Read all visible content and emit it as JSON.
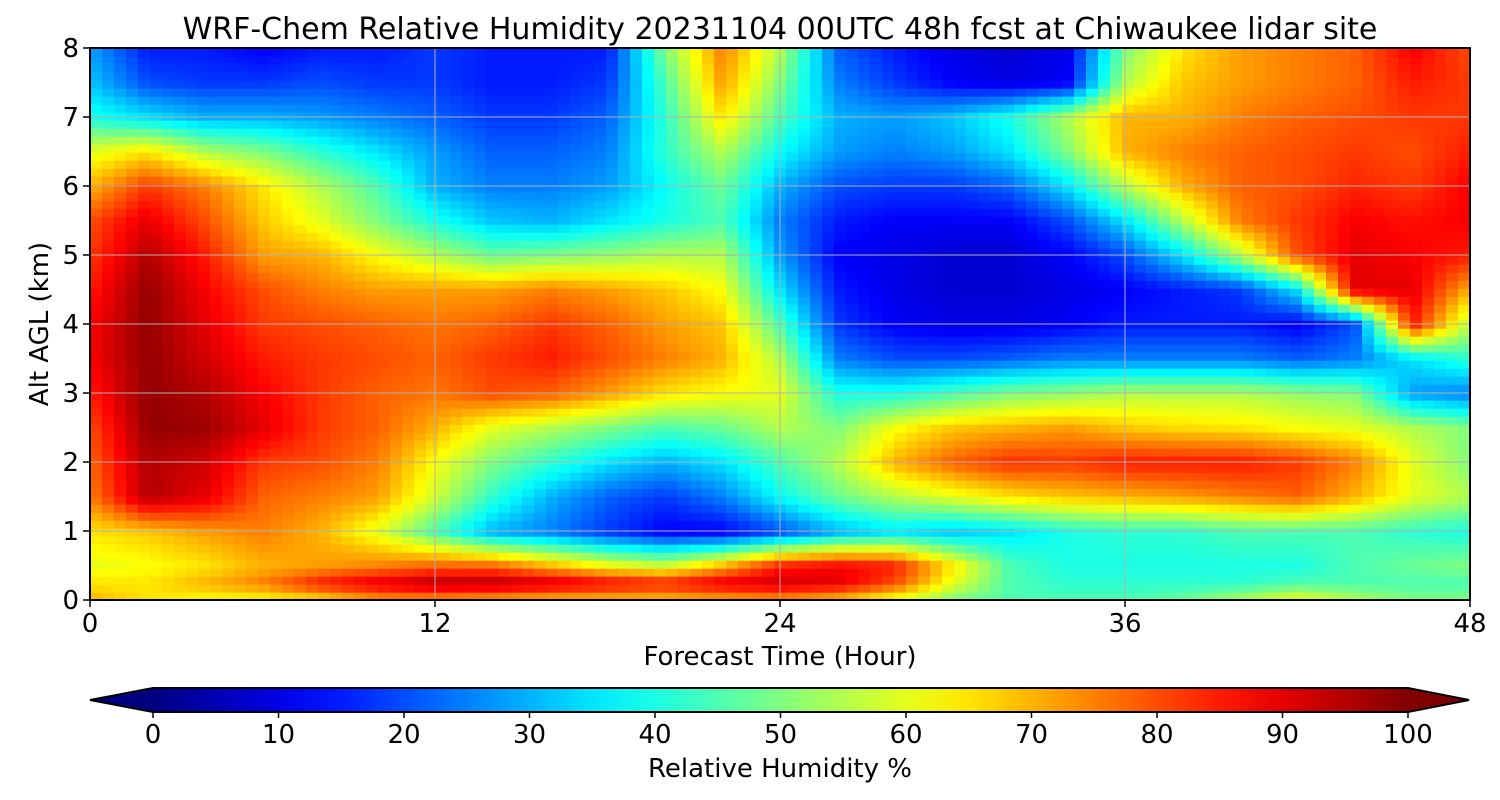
{
  "chart_data": {
    "type": "heatmap",
    "title": "WRF-Chem Relative Humidity 20231104 00UTC 48h fcst at Chiwaukee lidar site",
    "xlabel": "Forecast Time (Hour)",
    "ylabel": "Alt AGL (km)",
    "xlim": [
      0,
      48
    ],
    "ylim": [
      0,
      8
    ],
    "xticks": [
      0,
      12,
      24,
      36,
      48
    ],
    "yticks": [
      0,
      1,
      2,
      3,
      4,
      5,
      6,
      7,
      8
    ],
    "grid": true,
    "colorscale": "jet",
    "colorbar": {
      "label": "Relative Humidity %",
      "range": [
        0,
        100
      ],
      "ticks": [
        0,
        10,
        20,
        30,
        40,
        50,
        60,
        70,
        80,
        90,
        100
      ],
      "extend": "both"
    },
    "x": [
      0,
      2,
      4,
      6,
      8,
      10,
      12,
      14,
      16,
      18,
      20,
      22,
      24,
      26,
      28,
      30,
      32,
      34,
      36,
      38,
      40,
      42,
      44,
      46,
      48
    ],
    "y": [
      0,
      0.25,
      0.5,
      1,
      1.5,
      2,
      2.5,
      3,
      3.5,
      4,
      4.5,
      5,
      5.5,
      6,
      6.5,
      7,
      7.5,
      8
    ],
    "z": [
      [
        70,
        65,
        62,
        62,
        65,
        72,
        72,
        70,
        68,
        68,
        68,
        70,
        72,
        68,
        60,
        50,
        45,
        45,
        45,
        48,
        55,
        62,
        55,
        50,
        50
      ],
      [
        65,
        65,
        70,
        75,
        85,
        90,
        95,
        95,
        92,
        88,
        85,
        90,
        92,
        90,
        80,
        60,
        45,
        42,
        42,
        42,
        42,
        45,
        45,
        45,
        45
      ],
      [
        60,
        62,
        65,
        70,
        72,
        75,
        78,
        78,
        70,
        62,
        58,
        70,
        85,
        88,
        85,
        65,
        45,
        40,
        40,
        40,
        40,
        40,
        45,
        48,
        50
      ],
      [
        65,
        68,
        72,
        75,
        70,
        60,
        45,
        30,
        25,
        18,
        12,
        12,
        20,
        30,
        35,
        32,
        35,
        40,
        42,
        42,
        45,
        45,
        45,
        42,
        40
      ],
      [
        75,
        95,
        90,
        78,
        75,
        72,
        58,
        42,
        30,
        22,
        18,
        25,
        38,
        48,
        55,
        60,
        65,
        68,
        70,
        72,
        75,
        78,
        70,
        60,
        55
      ],
      [
        78,
        95,
        92,
        82,
        80,
        75,
        62,
        50,
        42,
        35,
        30,
        35,
        45,
        55,
        70,
        78,
        83,
        82,
        85,
        85,
        85,
        82,
        75,
        60,
        50
      ],
      [
        80,
        98,
        97,
        90,
        82,
        78,
        70,
        60,
        55,
        50,
        45,
        48,
        55,
        50,
        62,
        68,
        70,
        72,
        68,
        66,
        65,
        62,
        60,
        55,
        50
      ],
      [
        85,
        98,
        95,
        88,
        82,
        78,
        76,
        80,
        78,
        72,
        65,
        62,
        60,
        40,
        40,
        45,
        50,
        52,
        55,
        55,
        55,
        52,
        50,
        28,
        25
      ],
      [
        88,
        98,
        92,
        85,
        82,
        80,
        78,
        82,
        85,
        80,
        75,
        70,
        55,
        25,
        20,
        20,
        22,
        25,
        25,
        25,
        25,
        22,
        25,
        35,
        42
      ],
      [
        88,
        98,
        90,
        82,
        80,
        78,
        76,
        78,
        82,
        78,
        72,
        68,
        45,
        18,
        12,
        10,
        10,
        12,
        15,
        15,
        15,
        12,
        20,
        85,
        55
      ],
      [
        85,
        98,
        88,
        80,
        75,
        72,
        72,
        72,
        75,
        72,
        68,
        62,
        35,
        15,
        10,
        8,
        8,
        10,
        12,
        15,
        18,
        35,
        90,
        90,
        70
      ],
      [
        82,
        95,
        85,
        72,
        70,
        62,
        55,
        48,
        50,
        52,
        55,
        55,
        28,
        12,
        10,
        8,
        8,
        12,
        20,
        35,
        55,
        80,
        90,
        88,
        85
      ],
      [
        80,
        90,
        80,
        68,
        60,
        50,
        40,
        32,
        30,
        35,
        40,
        45,
        25,
        15,
        12,
        12,
        12,
        20,
        35,
        55,
        75,
        82,
        88,
        86,
        88
      ],
      [
        70,
        82,
        75,
        65,
        55,
        45,
        30,
        25,
        25,
        28,
        38,
        48,
        30,
        20,
        18,
        18,
        22,
        35,
        55,
        70,
        78,
        80,
        84,
        82,
        88
      ],
      [
        60,
        65,
        55,
        50,
        42,
        35,
        28,
        22,
        22,
        25,
        42,
        55,
        38,
        28,
        25,
        28,
        35,
        50,
        70,
        75,
        78,
        80,
        82,
        80,
        85
      ],
      [
        40,
        35,
        30,
        30,
        28,
        25,
        22,
        18,
        18,
        22,
        42,
        65,
        45,
        30,
        28,
        32,
        40,
        55,
        70,
        70,
        75,
        78,
        80,
        82,
        82
      ],
      [
        32,
        20,
        18,
        18,
        20,
        18,
        18,
        15,
        15,
        18,
        45,
        72,
        50,
        25,
        18,
        12,
        10,
        12,
        55,
        68,
        72,
        75,
        78,
        85,
        82
      ],
      [
        28,
        15,
        15,
        12,
        15,
        15,
        18,
        15,
        15,
        15,
        50,
        75,
        55,
        22,
        15,
        10,
        8,
        10,
        50,
        65,
        72,
        75,
        78,
        88,
        80
      ]
    ]
  }
}
